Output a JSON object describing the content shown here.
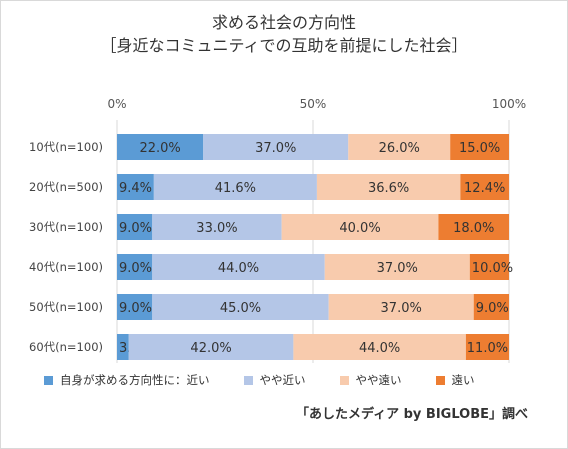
{
  "chart_data": {
    "type": "bar",
    "orientation": "horizontal",
    "stacked": true,
    "title": "求める社会の方向性",
    "subtitle": "［身近なコミュニティでの互助を前提にした社会］",
    "xticks": [
      "0%",
      "50%",
      "100%"
    ],
    "xlim": [
      0,
      100
    ],
    "categories": [
      "10代(n=100)",
      "20代(n=500)",
      "30代(n=100)",
      "40代(n=100)",
      "50代(n=100)",
      "60代(n=100)"
    ],
    "series": [
      {
        "name": "自身が求める方向性に：近い",
        "color": "#5b9bd5",
        "values": [
          22.0,
          9.4,
          9.0,
          9.0,
          9.0,
          3.0
        ],
        "labels": [
          "22.0%",
          "9.4%",
          "9.0%",
          "9.0%",
          "9.0%",
          "3.0%"
        ]
      },
      {
        "name": "やや近い",
        "color": "#b4c6e7",
        "values": [
          37.0,
          41.6,
          33.0,
          44.0,
          45.0,
          42.0
        ],
        "labels": [
          "37.0%",
          "41.6%",
          "33.0%",
          "44.0%",
          "45.0%",
          "42.0%"
        ]
      },
      {
        "name": "やや遠い",
        "color": "#f8cbad",
        "values": [
          26.0,
          36.6,
          40.0,
          37.0,
          37.0,
          44.0
        ],
        "labels": [
          "26.0%",
          "36.6%",
          "40.0%",
          "37.0%",
          "37.0%",
          "44.0%"
        ]
      },
      {
        "name": "遠い",
        "color": "#ed7d31",
        "values": [
          15.0,
          12.4,
          18.0,
          10.0,
          9.0,
          11.0
        ],
        "labels": [
          "15.0%",
          "12.4%",
          "18.0%",
          "10.0%",
          "9.0%",
          "11.0%"
        ]
      }
    ],
    "legend_position": "bottom",
    "grid": true,
    "source": "「あしたメディア by BIGLOBE」調べ"
  }
}
